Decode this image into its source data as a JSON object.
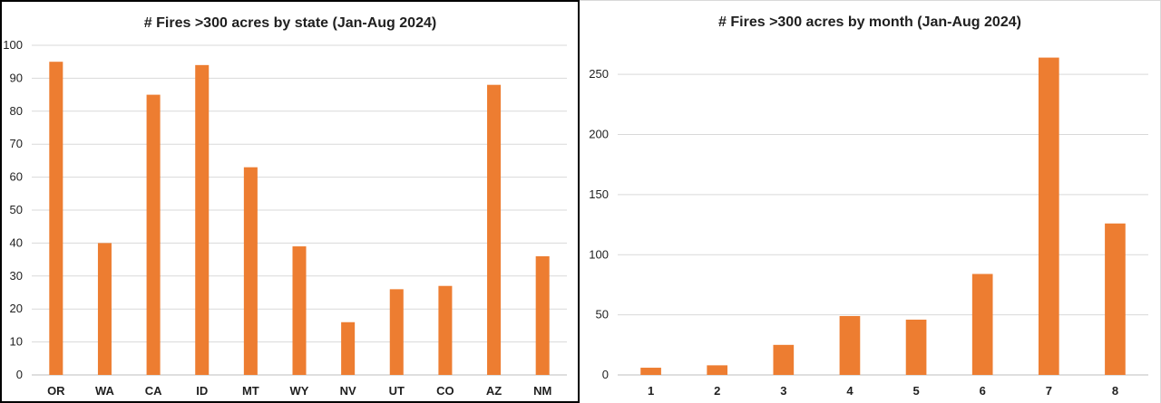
{
  "chart_data": [
    {
      "type": "bar",
      "title": "# Fires >300 acres by state (Jan-Aug 2024)",
      "categories": [
        "OR",
        "WA",
        "CA",
        "ID",
        "MT",
        "WY",
        "NV",
        "UT",
        "CO",
        "AZ",
        "NM"
      ],
      "values": [
        95,
        40,
        85,
        94,
        63,
        39,
        16,
        26,
        27,
        88,
        36
      ],
      "ylim": [
        0,
        100
      ],
      "yticks": [
        0,
        10,
        20,
        30,
        40,
        50,
        60,
        70,
        80,
        90,
        100
      ],
      "grid": true,
      "bar_color": "#ED7D31"
    },
    {
      "type": "bar",
      "title": "# Fires >300 acres by month (Jan-Aug 2024)",
      "categories": [
        "1",
        "2",
        "3",
        "4",
        "5",
        "6",
        "7",
        "8"
      ],
      "values": [
        6,
        8,
        25,
        49,
        46,
        84,
        264,
        126
      ],
      "ylim": [
        0,
        275
      ],
      "yticks": [
        0,
        50,
        100,
        150,
        200,
        250
      ],
      "grid": true,
      "bar_color": "#ED7D31"
    }
  ]
}
